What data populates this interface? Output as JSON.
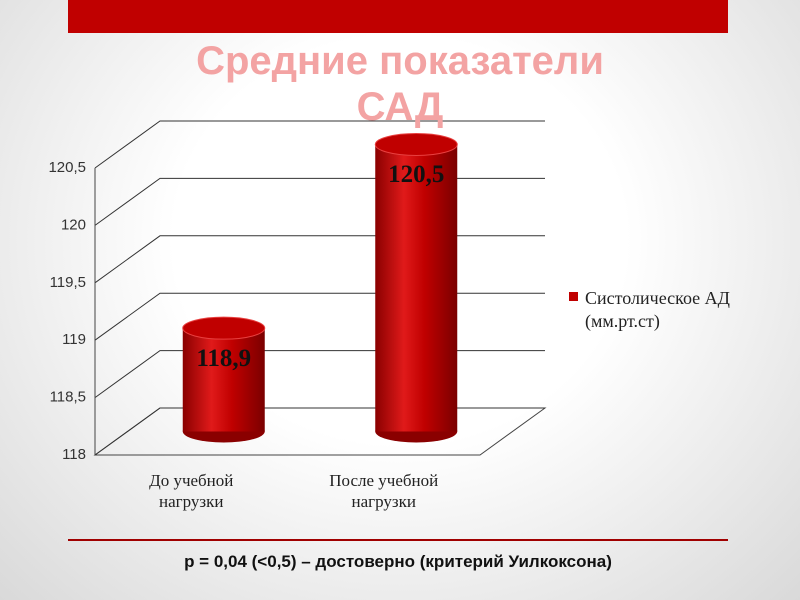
{
  "chart_data": {
    "type": "bar",
    "title": "Средние показатели САД",
    "categories": [
      "До учебной нагрузки",
      "После учебной нагрузки"
    ],
    "series": [
      {
        "name": "Систолическое АД (мм.рт.ст)",
        "color": "#c00000",
        "values": [
          118.9,
          120.5
        ],
        "value_labels": [
          "118,9",
          "120,5"
        ]
      }
    ],
    "ylim": [
      118,
      120.5
    ],
    "yticks": [
      118,
      {
        "value": 118.5,
        "label": "118,5"
      },
      119,
      {
        "value": 119.5,
        "label": "119,5"
      },
      120,
      {
        "value": 120.5,
        "label": "120,5"
      }
    ],
    "grid": true,
    "legend": "right",
    "note": "p = 0,04 (<0,5) – достоверно (критерий Уилкоксона)"
  }
}
